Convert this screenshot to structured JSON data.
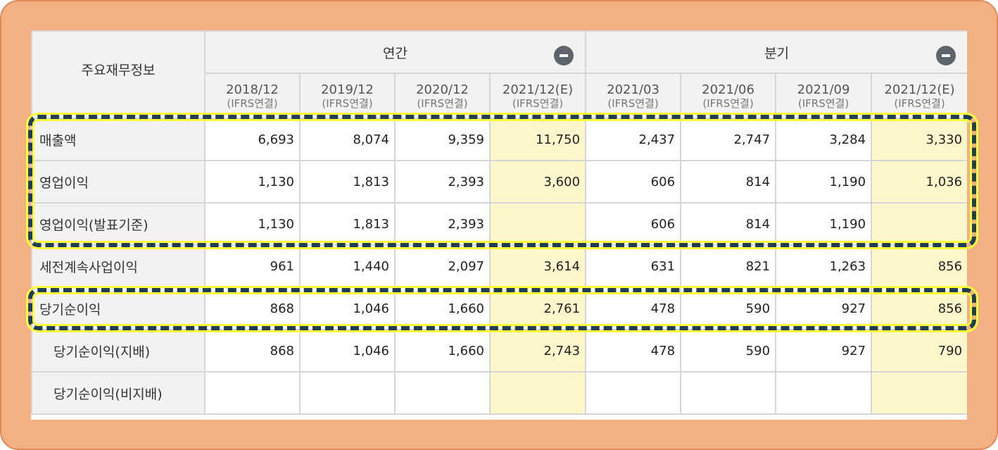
{
  "table": {
    "corner_label": "주요재무정보",
    "groups": [
      {
        "label": "연간"
      },
      {
        "label": "분기"
      }
    ],
    "periods": [
      {
        "label": "2018/12",
        "sub": "(IFRS연결)"
      },
      {
        "label": "2019/12",
        "sub": "(IFRS연결)"
      },
      {
        "label": "2020/12",
        "sub": "(IFRS연결)"
      },
      {
        "label": "2021/12(E)",
        "sub": "(IFRS연결)"
      },
      {
        "label": "2021/03",
        "sub": "(IFRS연결)"
      },
      {
        "label": "2021/06",
        "sub": "(IFRS연결)"
      },
      {
        "label": "2021/09",
        "sub": "(IFRS연결)"
      },
      {
        "label": "2021/12(E)",
        "sub": "(IFRS연결)"
      }
    ],
    "rows": [
      {
        "label": "매출액",
        "values": [
          "6,693",
          "8,074",
          "9,359",
          "11,750",
          "2,437",
          "2,747",
          "3,284",
          "3,330"
        ]
      },
      {
        "label": "영업이익",
        "values": [
          "1,130",
          "1,813",
          "2,393",
          "3,600",
          "606",
          "814",
          "1,190",
          "1,036"
        ]
      },
      {
        "label": "영업이익(발표기준)",
        "values": [
          "1,130",
          "1,813",
          "2,393",
          "",
          "606",
          "814",
          "1,190",
          ""
        ]
      },
      {
        "label": "세전계속사업이익",
        "values": [
          "961",
          "1,440",
          "2,097",
          "3,614",
          "631",
          "821",
          "1,263",
          "856"
        ]
      },
      {
        "label": "당기순이익",
        "values": [
          "868",
          "1,046",
          "1,660",
          "2,761",
          "478",
          "590",
          "927",
          "856"
        ]
      },
      {
        "label": "당기순이익(지배)",
        "values": [
          "868",
          "1,046",
          "1,660",
          "2,743",
          "478",
          "590",
          "927",
          "790"
        ]
      },
      {
        "label": "당기순이익(비지배)",
        "values": [
          "",
          "",
          "",
          "",
          "",
          "",
          "",
          ""
        ]
      }
    ]
  },
  "colors": {
    "frame": "#f3b082",
    "estimate_cell": "#fdf7cb",
    "header_bg": "#f2f2f2",
    "highlight_dash": "#1f3d55",
    "highlight_glow": "#ffff3a"
  }
}
